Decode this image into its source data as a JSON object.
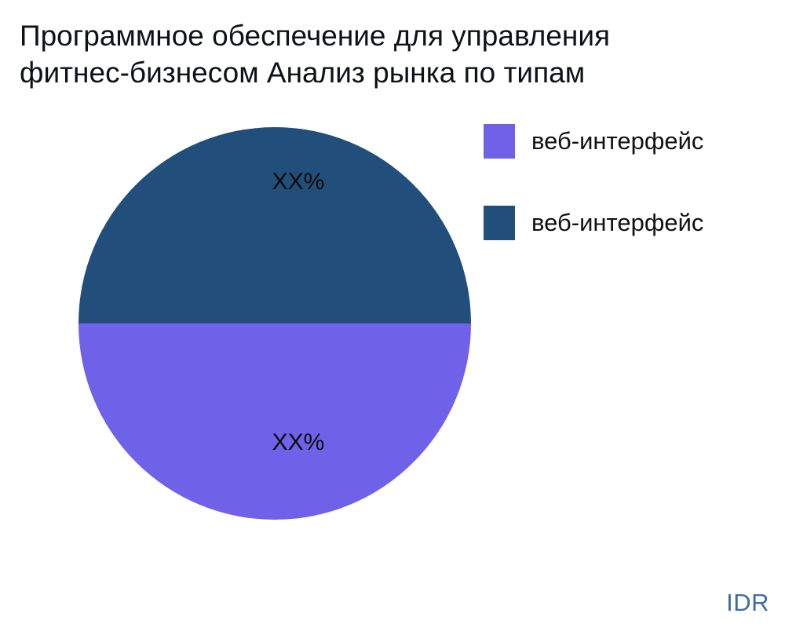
{
  "title": {
    "lines": [
      "Программное обеспечение для управления",
      "фитнес-бизнесом Анализ рынка по типам"
    ]
  },
  "watermark": {
    "label": "IDR",
    "color": "#3e6d9c"
  },
  "chart_data": {
    "type": "pie",
    "title": "Программное обеспечение для управления фитнес-бизнесом Анализ рынка по типам",
    "slices": [
      {
        "label": "веб-интерфейс",
        "value": 50,
        "value_label": "XX%",
        "color": "#6f62e9",
        "half": "bottom"
      },
      {
        "label": "веб-интерфейс",
        "value": 50,
        "value_label": "XX%",
        "color": "#214e7b",
        "half": "top"
      }
    ],
    "start_angle_deg": 90,
    "legend_position": "upper-right",
    "value_label_color": "#0a0a0a",
    "watermark": "IDR"
  }
}
